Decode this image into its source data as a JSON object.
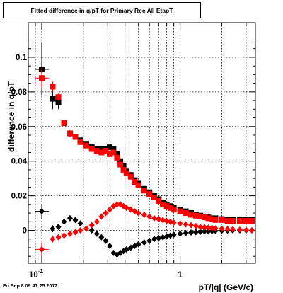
{
  "title": "Fitted difference in q/pT for Primary Rec All EtapT",
  "timestamp": "Fri Sep  8 09:47:25 2017",
  "chart_data": {
    "type": "scatter",
    "title": "Fitted difference in q/pT for Primary Rec All EtapT",
    "xlabel": "pT/|q| (GeV/c)",
    "ylabel": "difference in q/pT",
    "xscale": "log",
    "xlim": [
      0.08,
      3.5
    ],
    "ylim": [
      -0.019,
      0.12
    ],
    "x_tick_labels": [
      "10^-1",
      "1"
    ],
    "y_tick_labels": [
      "0",
      "0.02",
      "0.04",
      "0.06",
      "0.08",
      "0.1"
    ],
    "grid": true,
    "colors": {
      "black": "#000000",
      "red": "#ff0000"
    },
    "series": [
      {
        "marker": "square",
        "color": "#000000",
        "x": [
          0.1,
          0.12,
          0.132,
          0.145,
          0.16,
          0.175,
          0.19,
          0.21,
          0.23,
          0.25,
          0.27,
          0.29,
          0.31,
          0.33,
          0.35,
          0.37,
          0.39,
          0.41,
          0.44,
          0.47,
          0.5,
          0.55,
          0.6,
          0.65,
          0.7,
          0.75,
          0.8,
          0.85,
          0.9,
          1.0,
          1.1,
          1.2,
          1.3,
          1.4,
          1.5,
          1.6,
          1.7,
          1.8,
          2.0,
          2.2,
          2.4,
          2.7,
          3.0,
          3.3
        ],
        "y": [
          0.093,
          0.076,
          0.074,
          0.062,
          0.056,
          0.054,
          0.052,
          0.05,
          0.048,
          0.047,
          0.047,
          0.047,
          0.048,
          0.047,
          0.044,
          0.04,
          0.037,
          0.034,
          0.032,
          0.029,
          0.027,
          0.024,
          0.022,
          0.02,
          0.018,
          0.016,
          0.015,
          0.014,
          0.013,
          0.012,
          0.011,
          0.01,
          0.009,
          0.0085,
          0.008,
          0.0075,
          0.007,
          0.007,
          0.0065,
          0.006,
          0.006,
          0.006,
          0.006,
          0.006
        ],
        "yerr": [
          0.015,
          0.006,
          0.004,
          0.002,
          0.002,
          0.001,
          0.001,
          0.001,
          0.001,
          0.001,
          0.001,
          0.001,
          0.001,
          0.001,
          0.001,
          0.001,
          0.001,
          0.001,
          0.001,
          0.001,
          0.001,
          0.001,
          0.001,
          0.001,
          0.001,
          0.001,
          0.001,
          0.001,
          0.001,
          0.001,
          0.001,
          0.001,
          0.001,
          0.001,
          0.001,
          0.001,
          0.001,
          0.001,
          0.001,
          0.001,
          0.001,
          0.001,
          0.001,
          0.001
        ]
      },
      {
        "marker": "square",
        "color": "#ff0000",
        "x": [
          0.1,
          0.12,
          0.132,
          0.145,
          0.16,
          0.175,
          0.19,
          0.21,
          0.23,
          0.25,
          0.27,
          0.29,
          0.31,
          0.33,
          0.35,
          0.37,
          0.39,
          0.41,
          0.44,
          0.47,
          0.5,
          0.55,
          0.6,
          0.65,
          0.7,
          0.75,
          0.8,
          0.85,
          0.9,
          1.0,
          1.1,
          1.2,
          1.3,
          1.4,
          1.5,
          1.6,
          1.7,
          1.8,
          2.0,
          2.2,
          2.4,
          2.7,
          3.0,
          3.3
        ],
        "y": [
          0.088,
          0.083,
          0.077,
          0.062,
          0.056,
          0.054,
          0.051,
          0.049,
          0.047,
          0.046,
          0.045,
          0.046,
          0.044,
          0.045,
          0.042,
          0.038,
          0.035,
          0.033,
          0.031,
          0.028,
          0.026,
          0.023,
          0.021,
          0.019,
          0.017,
          0.015,
          0.014,
          0.013,
          0.012,
          0.011,
          0.01,
          0.009,
          0.0085,
          0.008,
          0.0075,
          0.007,
          0.0065,
          0.006,
          0.006,
          0.0055,
          0.0055,
          0.0055,
          0.0055,
          0.0055
        ],
        "yerr": [
          0.006,
          0.003,
          0.002,
          0.002,
          0.001,
          0.001,
          0.001,
          0.001,
          0.001,
          0.001,
          0.001,
          0.001,
          0.001,
          0.001,
          0.001,
          0.001,
          0.001,
          0.001,
          0.001,
          0.001,
          0.001,
          0.001,
          0.001,
          0.001,
          0.001,
          0.001,
          0.001,
          0.001,
          0.001,
          0.001,
          0.001,
          0.001,
          0.001,
          0.001,
          0.001,
          0.001,
          0.001,
          0.001,
          0.001,
          0.001,
          0.001,
          0.001,
          0.001,
          0.001
        ]
      },
      {
        "marker": "diamond",
        "color": "#000000",
        "x": [
          0.1,
          0.12,
          0.132,
          0.145,
          0.16,
          0.175,
          0.19,
          0.21,
          0.23,
          0.25,
          0.27,
          0.29,
          0.31,
          0.33,
          0.35,
          0.37,
          0.39,
          0.41,
          0.44,
          0.47,
          0.5,
          0.55,
          0.6,
          0.65,
          0.7,
          0.75,
          0.8,
          0.85,
          0.9,
          1.0,
          1.1,
          1.2,
          1.3,
          1.4,
          1.5,
          1.6,
          1.7,
          1.8,
          2.0,
          2.2,
          2.4,
          2.7,
          3.0,
          3.3
        ],
        "y": [
          0.011,
          0.001,
          0.002,
          0.005,
          0.007,
          0.006,
          0.004,
          0.001,
          0.0,
          -0.002,
          -0.004,
          -0.006,
          -0.009,
          -0.013,
          -0.014,
          -0.013,
          -0.012,
          -0.011,
          -0.01,
          -0.009,
          -0.008,
          -0.007,
          -0.006,
          -0.005,
          -0.0045,
          -0.004,
          -0.0035,
          -0.003,
          -0.0025,
          -0.002,
          -0.0015,
          -0.0012,
          -0.001,
          -0.0008,
          -0.0006,
          -0.0005,
          -0.0004,
          -0.0003,
          -0.0002,
          -0.0001,
          0.0,
          0.0,
          0.0,
          0.0
        ],
        "yerr": [
          0.004,
          0.002,
          0.001,
          0.001,
          0.001,
          0.001,
          0.001,
          0.001,
          0.001,
          0.001,
          0.001,
          0.001,
          0.001,
          0.001,
          0.001,
          0.001,
          0.001,
          0.001,
          0.001,
          0.001,
          0.001,
          0.001,
          0.001,
          0.001,
          0.001,
          0.001,
          0.001,
          0.001,
          0.001,
          0.001,
          0.001,
          0.001,
          0.001,
          0.001,
          0.001,
          0.001,
          0.001,
          0.001,
          0.001,
          0.001,
          0.001,
          0.001,
          0.001,
          0.001
        ]
      },
      {
        "marker": "diamond",
        "color": "#ff0000",
        "x": [
          0.1,
          0.12,
          0.132,
          0.145,
          0.16,
          0.175,
          0.19,
          0.21,
          0.23,
          0.25,
          0.27,
          0.29,
          0.31,
          0.33,
          0.35,
          0.37,
          0.39,
          0.41,
          0.44,
          0.47,
          0.5,
          0.55,
          0.6,
          0.65,
          0.7,
          0.75,
          0.8,
          0.85,
          0.9,
          1.0,
          1.1,
          1.2,
          1.3,
          1.4,
          1.5,
          1.6,
          1.7,
          1.8,
          2.0,
          2.2,
          2.4,
          2.7,
          3.0,
          3.3
        ],
        "y": [
          -0.011,
          -0.005,
          -0.004,
          -0.003,
          -0.002,
          -0.001,
          0.0,
          0.001,
          0.003,
          0.005,
          0.008,
          0.01,
          0.012,
          0.014,
          0.015,
          0.015,
          0.014,
          0.013,
          0.012,
          0.011,
          0.01,
          0.009,
          0.008,
          0.007,
          0.0065,
          0.006,
          0.0055,
          0.005,
          0.0045,
          0.004,
          0.0035,
          0.003,
          0.0025,
          0.002,
          0.0018,
          0.0016,
          0.0014,
          0.0012,
          0.001,
          0.0008,
          0.0006,
          0.0004,
          0.0002,
          0.0
        ],
        "yerr": [
          0.004,
          0.002,
          0.001,
          0.001,
          0.001,
          0.001,
          0.001,
          0.001,
          0.001,
          0.001,
          0.001,
          0.001,
          0.001,
          0.001,
          0.001,
          0.001,
          0.001,
          0.001,
          0.001,
          0.001,
          0.001,
          0.001,
          0.001,
          0.001,
          0.001,
          0.001,
          0.001,
          0.001,
          0.001,
          0.001,
          0.001,
          0.001,
          0.001,
          0.001,
          0.001,
          0.001,
          0.001,
          0.001,
          0.001,
          0.001,
          0.001,
          0.001,
          0.001,
          0.001
        ]
      }
    ]
  }
}
